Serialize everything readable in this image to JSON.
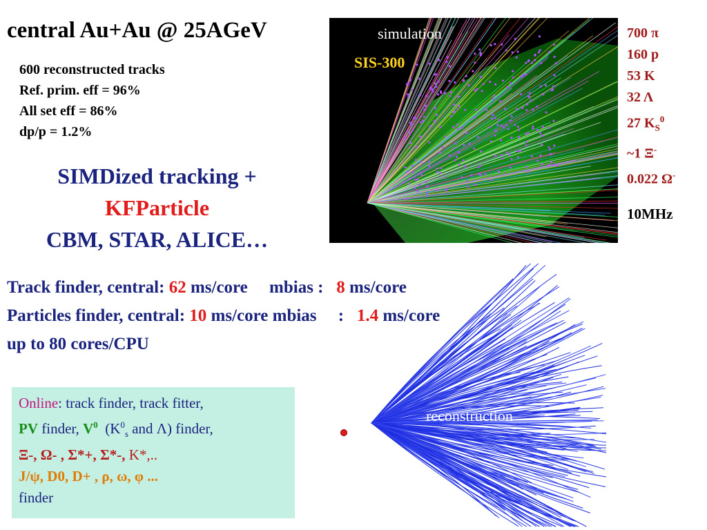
{
  "title": "central Au+Au @ 25AGeV",
  "stats": [
    "600 reconstructed tracks",
    "Ref. prim. eff = 96%",
    "All set eff = 86%",
    "dp/p = 1.2%"
  ],
  "simd": {
    "line1": "SIMDized tracking +",
    "line2": "KFParticle",
    "line3": "CBM, STAR, ALICE…"
  },
  "particles": {
    "pi": "700 π",
    "p": "160 p",
    "k": "53 K",
    "lambda": "32 Λ",
    "ks_prefix": "27 K",
    "ks_sub": "S",
    "ks_sup": "0",
    "xi_prefix": "~1 Ξ",
    "xi_sup": "-",
    "omega_prefix": "0.022 Ω",
    "omega_sup": "-"
  },
  "rate": "10MHz",
  "simulation": {
    "label": "simulation",
    "sis": "SIS-300"
  },
  "performance": {
    "track_prefix": "Track finder, central: ",
    "track_central": "62",
    "track_mid": " ms/core     mbias :   ",
    "track_mbias": "8",
    "track_suffix": " ms/core",
    "part_prefix": "Particles finder, central: ",
    "part_central": "10",
    "part_mid": " ms/core mbias     :   ",
    "part_mbias": "1.4",
    "part_suffix": " ms/core",
    "cores": "up to 80 cores/CPU"
  },
  "online": {
    "online_word": "Online",
    "line1_rest": ": track finder, track fitter,",
    "pv": "PV",
    "finder1": " finder, ",
    "v0": "V",
    "v0_sup": "0",
    "k0_open": "  (K",
    "k0_sup": "0",
    "k0_sub": "s",
    "and_lambda": " and Λ) finder,",
    "hyperons": "Ξ-, Ω- , Σ*+, Σ*-, ",
    "kstar": "K*,..",
    "charm": "J/ψ, D0, D+ , ρ, ω, φ ...",
    "finder_last": "finder"
  },
  "reconstruction": {
    "label": "reconstruction"
  },
  "colors": {
    "navy": "#1a237e",
    "red": "#e21b1b",
    "dark_red": "#a01a1a",
    "box_bg": "#c4f0e4",
    "tracks": "#1f2fe0"
  }
}
